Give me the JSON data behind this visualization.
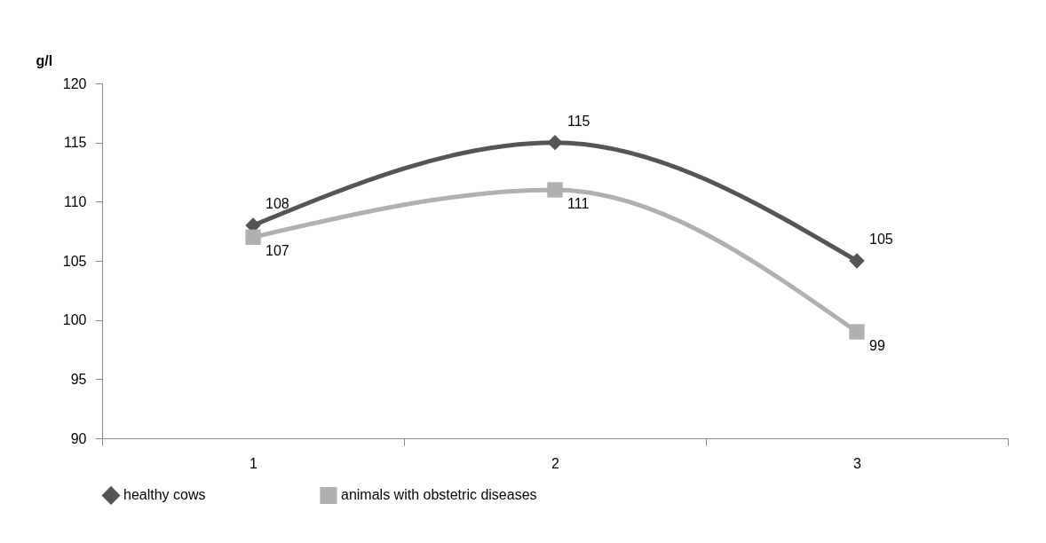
{
  "chart_data": {
    "type": "line",
    "ylabel": "g/l",
    "categories": [
      "1",
      "2",
      "3"
    ],
    "series": [
      {
        "name": "healthy cows",
        "color": "#555555",
        "marker": "diamond",
        "values": [
          108,
          115,
          105
        ]
      },
      {
        "name": "animals with obstetric diseases",
        "color": "#b0b0b0",
        "marker": "square",
        "values": [
          107,
          111,
          99
        ]
      }
    ],
    "ylim": [
      90,
      120
    ],
    "yticks": [
      90,
      95,
      100,
      105,
      110,
      115,
      120
    ],
    "grid": false,
    "legend": "bottom",
    "data_labels": true,
    "line_style": "solid"
  }
}
